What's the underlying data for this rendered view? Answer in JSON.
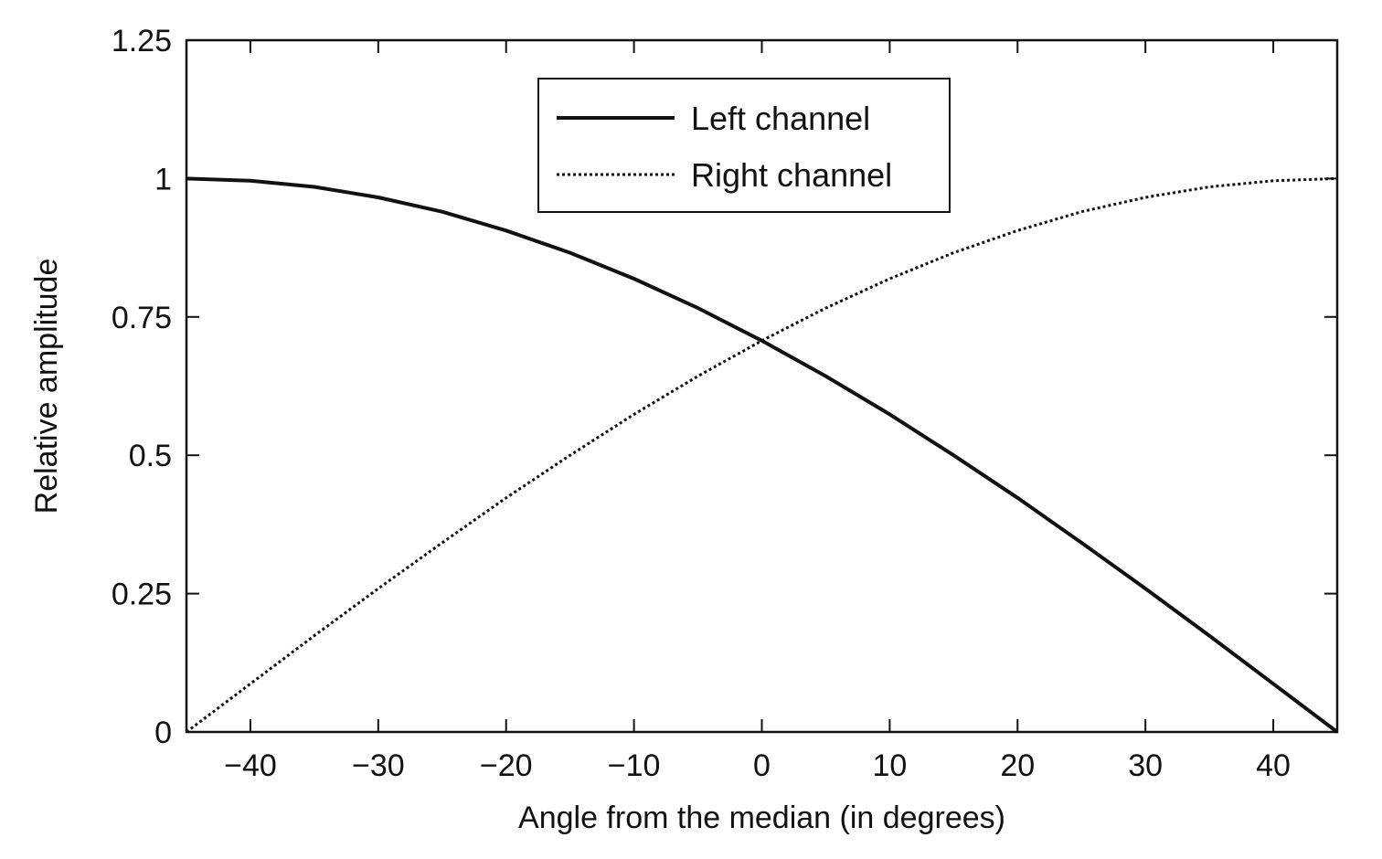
{
  "chart_data": {
    "type": "line",
    "title": "",
    "xlabel": "Angle from the median (in degrees)",
    "ylabel": "Relative amplitude",
    "xlim": [
      -45,
      45
    ],
    "ylim": [
      0,
      1.25
    ],
    "x_ticks": [
      -40,
      -30,
      -20,
      -10,
      0,
      10,
      20,
      30,
      40
    ],
    "x_tick_labels": [
      "−40",
      "−30",
      "−20",
      "−10",
      "0",
      "10",
      "20",
      "30",
      "40"
    ],
    "y_ticks": [
      0,
      0.25,
      0.5,
      0.75,
      1,
      1.25
    ],
    "y_tick_labels": [
      "0",
      "0.25",
      "0.5",
      "0.75",
      "1",
      "1.25"
    ],
    "grid": false,
    "legend_position": "top-center",
    "series": [
      {
        "name": "Left channel",
        "style": "solid",
        "color": "#111111",
        "x": [
          -45,
          -40,
          -35,
          -30,
          -25,
          -20,
          -15,
          -10,
          -5,
          0,
          5,
          10,
          15,
          20,
          25,
          30,
          35,
          40,
          45
        ],
        "y": [
          1.0,
          0.996,
          0.985,
          0.966,
          0.94,
          0.906,
          0.866,
          0.819,
          0.766,
          0.707,
          0.643,
          0.574,
          0.5,
          0.423,
          0.342,
          0.259,
          0.174,
          0.087,
          0.0
        ]
      },
      {
        "name": "Right channel",
        "style": "dotted",
        "color": "#111111",
        "x": [
          -45,
          -40,
          -35,
          -30,
          -25,
          -20,
          -15,
          -10,
          -5,
          0,
          5,
          10,
          15,
          20,
          25,
          30,
          35,
          40,
          45
        ],
        "y": [
          0.0,
          0.087,
          0.174,
          0.259,
          0.342,
          0.423,
          0.5,
          0.574,
          0.643,
          0.707,
          0.766,
          0.819,
          0.866,
          0.906,
          0.94,
          0.966,
          0.985,
          0.996,
          1.0
        ]
      }
    ]
  }
}
